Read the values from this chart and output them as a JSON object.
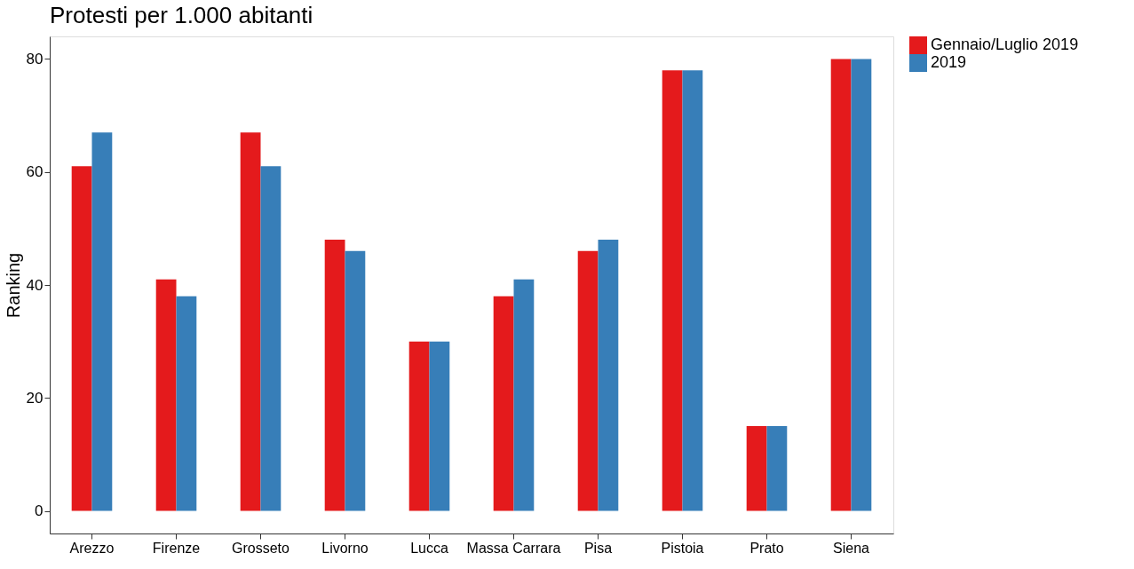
{
  "chart_data": {
    "type": "bar",
    "title": "Protesti per 1.000 abitanti",
    "ylabel": "Ranking",
    "categories": [
      "Arezzo",
      "Firenze",
      "Grosseto",
      "Livorno",
      "Lucca",
      "Massa Carrara",
      "Pisa",
      "Pistoia",
      "Prato",
      "Siena"
    ],
    "series": [
      {
        "name": "Gennaio/Luglio 2019",
        "color": "#e41a1c",
        "values": [
          61,
          41,
          67,
          48,
          30,
          38,
          46,
          78,
          15,
          80
        ]
      },
      {
        "name": "2019",
        "color": "#377eb8",
        "values": [
          67,
          38,
          61,
          46,
          30,
          41,
          48,
          78,
          15,
          80
        ]
      }
    ],
    "ylim": [
      -4,
      84
    ],
    "yticks": [
      0,
      20,
      40,
      60,
      80
    ],
    "grid": false,
    "legend": "right"
  }
}
